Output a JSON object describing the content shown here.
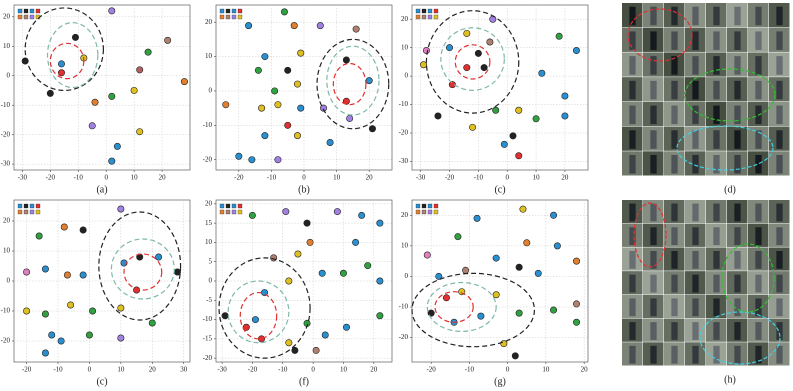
{
  "chart_data": [
    {
      "type": "scatter",
      "caption": "(a)",
      "grid": true,
      "xlim": [
        -33,
        30
      ],
      "ylim": [
        -32,
        24
      ],
      "xticks": [
        -30,
        -20,
        -10,
        0,
        10,
        20
      ],
      "yticks": [
        -30,
        -20,
        -10,
        0,
        10,
        20
      ],
      "x": [
        -29,
        -20,
        -16,
        -11,
        -8,
        -16,
        -4,
        2,
        10,
        15,
        22,
        28,
        12,
        4,
        2,
        -5,
        2,
        12
      ],
      "y": [
        5,
        -6,
        4,
        13,
        6,
        1,
        -9,
        -7,
        -5,
        8,
        12,
        -2,
        -19,
        -24,
        -29,
        -17,
        22,
        2
      ],
      "colors": [
        "#222222",
        "#222222",
        "#2a8fd0",
        "#222222",
        "#e0c020",
        "#e03030",
        "#e08030",
        "#30a040",
        "#e0c020",
        "#30a040",
        "#b08070",
        "#e08030",
        "#e0c020",
        "#2a8fd0",
        "#2a8fd0",
        "#a080e0",
        "#a080e0",
        "#b06060"
      ]
    },
    {
      "type": "scatter",
      "caption": "(b)",
      "grid": true,
      "xlim": [
        -27,
        27
      ],
      "ylim": [
        -23,
        25
      ],
      "xticks": [
        -20,
        -10,
        0,
        10,
        20
      ],
      "yticks": [
        -20,
        -10,
        0,
        10,
        20
      ],
      "x": [
        -6,
        -17,
        -3,
        5,
        16,
        -12,
        -1,
        -14,
        -5,
        13,
        -9,
        -2,
        20,
        13,
        -24,
        -13,
        -8,
        -1,
        6,
        14,
        -5,
        21,
        -12,
        -2,
        8,
        -20,
        -8,
        -16
      ],
      "y": [
        23,
        19,
        19,
        19,
        18,
        10,
        11,
        6,
        6,
        9,
        0,
        2,
        3,
        -3,
        -4,
        -5,
        -4,
        -5,
        -5,
        -8,
        -10,
        -11,
        -13,
        -13,
        -15,
        -19,
        -20,
        -20
      ],
      "colors": [
        "#30a040",
        "#2a8fd0",
        "#e08030",
        "#a080e0",
        "#b08070",
        "#2a8fd0",
        "#e0c020",
        "#30a040",
        "#222222",
        "#222222",
        "#30a040",
        "#e0c020",
        "#2a8fd0",
        "#e03030",
        "#e08030",
        "#e0c020",
        "#e0c020",
        "#2a8fd0",
        "#a080e0",
        "#a080e0",
        "#e03030",
        "#222222",
        "#2a8fd0",
        "#e0c020",
        "#2a8fd0",
        "#2a8fd0",
        "#a080e0",
        "#2a8fd0"
      ]
    },
    {
      "type": "scatter",
      "caption": "(c)",
      "grid": true,
      "xlim": [
        -33,
        28
      ],
      "ylim": [
        -33,
        25
      ],
      "xticks": [
        -30,
        -20,
        -10,
        0,
        10,
        20
      ],
      "yticks": [
        -30,
        -20,
        -10,
        0,
        10,
        20
      ],
      "x": [
        -28,
        -20,
        -14,
        -10,
        -6,
        -14,
        -8,
        -19,
        -24,
        -12,
        -4,
        4,
        10,
        20,
        12,
        18,
        24,
        20,
        2,
        -1,
        4,
        -5,
        -29
      ],
      "y": [
        9,
        10,
        15,
        8,
        12,
        3,
        3,
        -3,
        -14,
        -18,
        -12,
        -12,
        -15,
        -14,
        1,
        14,
        9,
        -7,
        -21,
        -24,
        -28,
        20,
        4
      ],
      "colors": [
        "#e080c0",
        "#2a8fd0",
        "#e0c020",
        "#222222",
        "#b08070",
        "#e03030",
        "#222222",
        "#e03030",
        "#222222",
        "#e0c020",
        "#30a040",
        "#e0c020",
        "#30a040",
        "#2a8fd0",
        "#2a8fd0",
        "#30a040",
        "#2a8fd0",
        "#2a8fd0",
        "#222222",
        "#2a8fd0",
        "#e03030",
        "#a080e0",
        "#e0c020"
      ]
    },
    {
      "type": "scatter",
      "caption": "(c)",
      "grid": true,
      "xlim": [
        -24,
        32
      ],
      "ylim": [
        -27,
        27
      ],
      "xticks": [
        -20,
        -10,
        0,
        10,
        20,
        30
      ],
      "yticks": [
        -20,
        -10,
        0,
        10,
        20
      ],
      "x": [
        10,
        -16,
        -8,
        -2,
        -20,
        -14,
        -7,
        -2,
        11,
        16,
        22,
        28,
        15,
        -20,
        -14,
        -6,
        1,
        10,
        -12,
        -9,
        0,
        10,
        -14,
        20
      ],
      "y": [
        24,
        15,
        18,
        17,
        3,
        4,
        2,
        2,
        6,
        8,
        8,
        3,
        -3,
        -10,
        -11,
        -8,
        -10,
        -9,
        -18,
        -20,
        -18,
        -19,
        -24,
        -14
      ],
      "colors": [
        "#a080e0",
        "#30a040",
        "#e08030",
        "#222222",
        "#e080c0",
        "#2a8fd0",
        "#e08030",
        "#2a8fd0",
        "#2a8fd0",
        "#222222",
        "#2a8fd0",
        "#222222",
        "#e03030",
        "#e0c020",
        "#30a040",
        "#e0c020",
        "#30a040",
        "#e0c020",
        "#2a8fd0",
        "#2a8fd0",
        "#30a040",
        "#a080e0",
        "#2a8fd0",
        "#30a040"
      ]
    },
    {
      "type": "scatter",
      "caption": "(f)",
      "grid": true,
      "xlim": [
        -32,
        26
      ],
      "ylim": [
        -21,
        21
      ],
      "xticks": [
        -30,
        -20,
        -10,
        0,
        10,
        20
      ],
      "yticks": [
        -20,
        -15,
        -10,
        -5,
        0,
        5,
        10,
        15,
        20
      ],
      "x": [
        -20,
        -9,
        -2,
        8,
        16,
        -13,
        -5,
        -1,
        14,
        22,
        -16,
        -8,
        3,
        10,
        18,
        22,
        -29,
        -22,
        -19,
        -17,
        -8,
        -2,
        4,
        11,
        -6,
        1,
        22
      ],
      "y": [
        17,
        18,
        15,
        18,
        17,
        6,
        7,
        10,
        10,
        15,
        -3,
        0,
        2,
        2,
        4,
        0,
        -9,
        -12,
        -10,
        -15,
        -16,
        -11,
        -14,
        -12,
        -18,
        -18,
        -9
      ],
      "colors": [
        "#30a040",
        "#a080e0",
        "#222222",
        "#a080e0",
        "#2a8fd0",
        "#b08070",
        "#e0c020",
        "#e08030",
        "#2a8fd0",
        "#2a8fd0",
        "#2a8fd0",
        "#e0c020",
        "#2a8fd0",
        "#30a040",
        "#30a040",
        "#2a8fd0",
        "#222222",
        "#e03030",
        "#2a8fd0",
        "#e03030",
        "#e0c020",
        "#30a040",
        "#2a8fd0",
        "#2a8fd0",
        "#222222",
        "#b08070",
        "#30a040"
      ]
    },
    {
      "type": "scatter",
      "caption": "(g)",
      "grid": true,
      "xlim": [
        -25,
        21
      ],
      "ylim": [
        -28,
        25
      ],
      "xticks": [
        -20,
        -10,
        0,
        10,
        20
      ],
      "yticks": [
        -20,
        -10,
        0,
        10,
        20
      ],
      "x": [
        -21,
        -13,
        -8,
        4,
        12,
        -18,
        -11,
        -3,
        5,
        13,
        18,
        3,
        8,
        -16,
        -12,
        -20,
        -14,
        -7,
        -3,
        3,
        12,
        18,
        -1,
        2,
        18
      ],
      "y": [
        7,
        13,
        19,
        22,
        20,
        0,
        2,
        6,
        11,
        10,
        5,
        3,
        1,
        -7,
        -5,
        -12,
        -15,
        -13,
        -6,
        -12,
        -11,
        -9,
        -22,
        -26,
        -15
      ],
      "colors": [
        "#e080c0",
        "#30a040",
        "#2a8fd0",
        "#e0c020",
        "#2a8fd0",
        "#2a8fd0",
        "#b08070",
        "#2a8fd0",
        "#e08030",
        "#2a8fd0",
        "#e08030",
        "#222222",
        "#2a8fd0",
        "#e03030",
        "#e0c020",
        "#222222",
        "#2a8fd0",
        "#2a8fd0",
        "#e0c020",
        "#30a040",
        "#30a040",
        "#b08070",
        "#e0c020",
        "#222222",
        "#30a040"
      ]
    }
  ],
  "image_panels": [
    {
      "caption": "(d)"
    },
    {
      "caption": "(h)"
    }
  ]
}
